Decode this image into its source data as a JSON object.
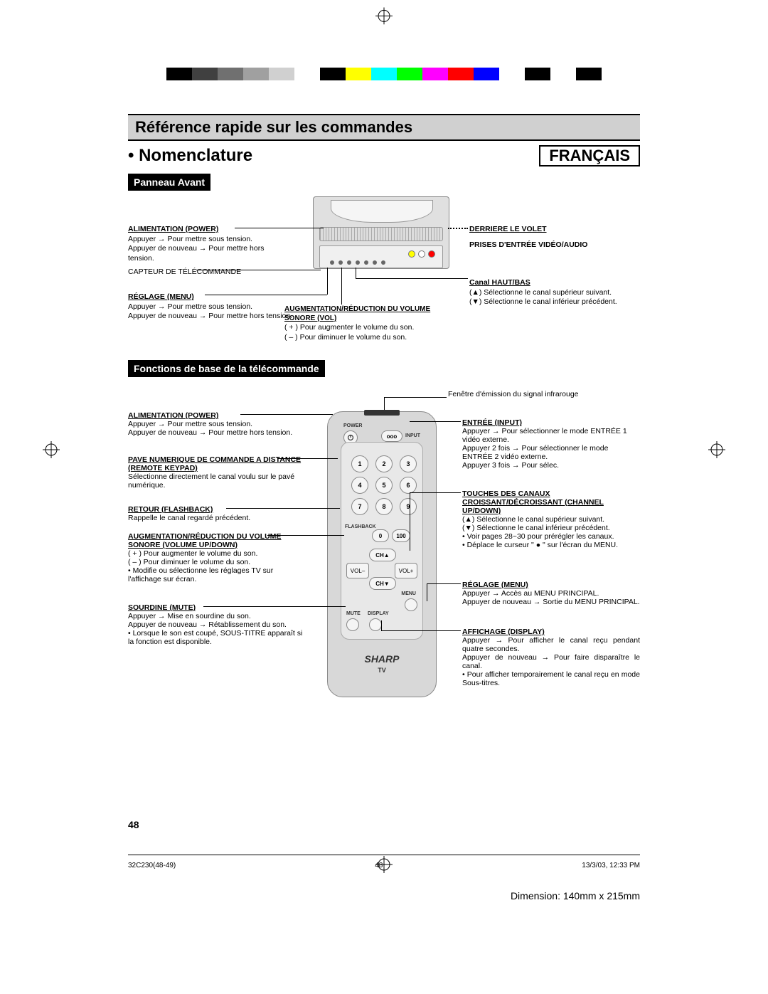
{
  "colorbar": [
    "#000000",
    "#404040",
    "#707070",
    "#a0a0a0",
    "#d0d0d0",
    "#ffffff",
    "#000000",
    "#ffff00",
    "#00ffff",
    "#00ff00",
    "#ff00ff",
    "#ff0000",
    "#0000ff",
    "#ffffff",
    "#000000",
    "#ffffff",
    "#000000"
  ],
  "header": {
    "banner": "Référence rapide sur les commandes",
    "subtitle": "• Nomenclature",
    "language": "FRANÇAIS"
  },
  "panel": {
    "title": "Panneau Avant",
    "left": {
      "power_title": "ALIMENTATION (POWER)",
      "power_text": "Appuyer → Pour mettre sous tension.\nAppuyer de nouveau → Pour mettre hors tension.",
      "sensor": "CAPTEUR DE TÉLÉCOMMANDE",
      "menu_title": "RÉGLAGE  (MENU)",
      "menu_text": "Appuyer → Pour mettre sous tension.\nAppuyer de nouveau → Pour mettre hors tension."
    },
    "center": {
      "vol_title": "AUGMENTATION/RÉDUCTION DU VOLUME SONORE (VOL)",
      "vol_text": "( + ) Pour augmenter le volume du son.\n( – ) Pour diminuer le volume du son."
    },
    "right": {
      "behind": "DERRIERE LE VOLET",
      "prises": "PRISES D'ENTRÉE VIDÉO/AUDIO",
      "ch_title": "Canal HAUT/BAS",
      "ch_up": "(▲) Sélectionne le canal supérieur suivant.",
      "ch_down": "(▼) Sélectionne le canal inférieur précédent."
    }
  },
  "remote": {
    "title": "Fonctions de base de la télécommande",
    "ir_window": "Fenêtre d'émission du signal infrarouge",
    "brand": "SHARP",
    "brand_sub": "TV",
    "labels": {
      "power": "POWER",
      "input": "INPUT",
      "flashback": "FLASHBACK",
      "ch_up": "CH▲",
      "ch_down": "CH▼",
      "vol_minus": "VOL–",
      "vol_plus": "VOL+",
      "menu": "MENU",
      "mute": "MUTE",
      "display": "DISPLAY",
      "zero": "0",
      "hundred": "100"
    },
    "keypad": [
      "1",
      "2",
      "3",
      "4",
      "5",
      "6",
      "7",
      "8",
      "9"
    ],
    "left": {
      "power_title": "ALIMENTATION (POWER)",
      "power_text": "Appuyer → Pour mettre sous tension.\nAppuyer de nouveau → Pour mettre hors tension.",
      "keypad_title": "PAVE NUMERIQUE DE COMMANDE A  DISTANCE (REMOTE KEYPAD)",
      "keypad_text": "Sélectionne directement le canal voulu sur le pavé numérique.",
      "flash_title": "RETOUR (FLASHBACK)",
      "flash_text": "Rappelle le canal regardé précédent.",
      "vol_title": "AUGMENTATION/RÉDUCTION DU VOLUME SONORE (VOLUME UP/DOWN)",
      "vol_text": "( + ) Pour augmenter le volume du son.\n( – ) Pour diminuer le volume du son.\n•  Modifie ou sélectionne les réglages TV sur l'affichage sur écran.",
      "mute_title": "SOURDINE (MUTE)",
      "mute_text": "Appuyer → Mise en sourdine du son.\nAppuyer de nouveau → Rétablissement du son.\n•  Lorsque le son est coupé, SOUS-TITRE apparaît si la fonction est disponible."
    },
    "right": {
      "input_title": "ENTRÉE (INPUT)",
      "input_text": "Appuyer → Pour sélectionner le mode ENTRÉE 1 vidéo externe.\nAppuyer 2 fois → Pour sélectionner le mode ENTRÉE 2 vidéo externe.\nAppuyer 3 fois → Pour sélec.",
      "ch_title": "TOUCHES DES CANAUX CROISSANT/DÉCROISSANT (CHANNEL UP/DOWN)",
      "ch_text": "(▲) Sélectionne le canal supérieur suivant.\n(▼) Sélectionne le canal inférieur précédent.\n•  Voir pages 28~30 pour prérégler les canaux.\n•  Déplace le curseur \" ● \" sur l'écran du MENU.",
      "menu_title": "RÉGLAGE (MENU)",
      "menu_text": "Appuyer → Accès au MENU PRINCIPAL.\nAppuyer de nouveau → Sortie du MENU PRINCIPAL.",
      "display_title": "AFFICHAGE (DISPLAY)",
      "display_text": "Appuyer → Pour afficher le canal reçu pendant quatre secondes.\nAppuyer de nouveau → Pour faire disparaître le canal.\n•  Pour afficher temporairement le canal reçu en mode Sous-titres."
    }
  },
  "footer": {
    "page_num": "48",
    "file": "32C230(48-49)",
    "center_pg": "48",
    "datetime": "13/3/03, 12:33 PM",
    "dimension": "Dimension: 140mm x 215mm"
  }
}
